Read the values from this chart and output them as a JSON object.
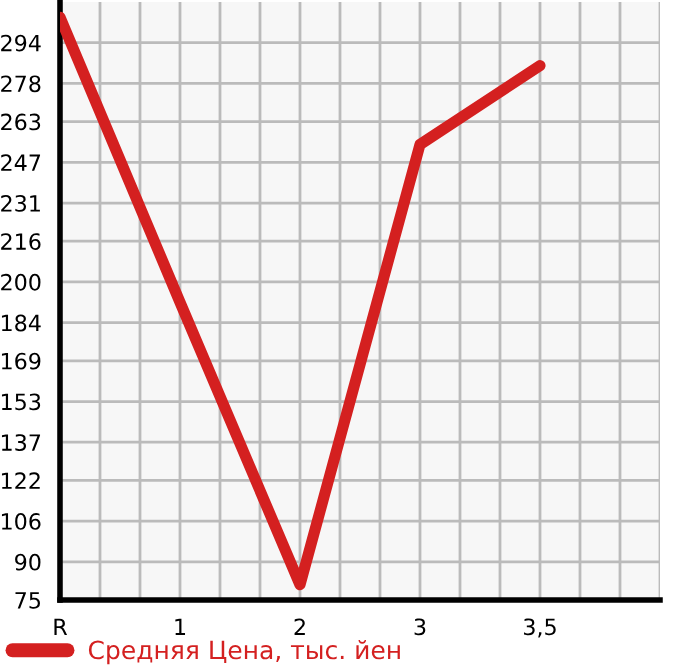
{
  "chart_data": {
    "type": "line",
    "categories": [
      "R",
      "1",
      "2",
      "3",
      "3,5"
    ],
    "series": [
      {
        "name": "Средняя Цена, тыс. йен",
        "color": "#d42020",
        "values": [
          304,
          192,
          81,
          254,
          285
        ]
      }
    ],
    "ylim": [
      75,
      310
    ],
    "yticks": [
      75,
      90,
      106,
      122,
      137,
      153,
      169,
      184,
      200,
      216,
      231,
      247,
      263,
      278,
      294
    ],
    "grid": true,
    "legend": "bottom",
    "marker": "none",
    "line_style": "solid"
  }
}
